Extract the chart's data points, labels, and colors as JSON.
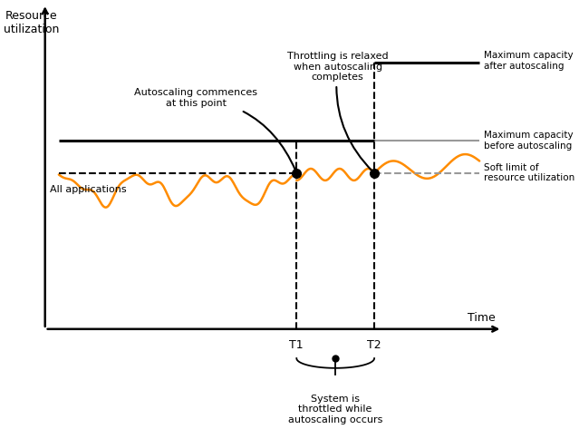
{
  "title": "",
  "xlabel": "Time",
  "ylabel": "Resource\nutilization",
  "xlim": [
    0,
    10
  ],
  "ylim": [
    0,
    10
  ],
  "background_color": "#ffffff",
  "orange_color": "#FF8C00",
  "black_color": "#000000",
  "gray_color": "#999999",
  "gray_dashed_color": "#aaaaaa",
  "t1": 5.5,
  "t2": 7.2,
  "max_cap_before": 5.8,
  "max_cap_after": 8.2,
  "soft_limit": 4.8,
  "annotations": {
    "throttling_relaxed": "Throttling is relaxed\nwhen autoscaling\ncompletes",
    "autoscaling_commences": "Autoscaling commences\nat this point",
    "all_applications": "All applications",
    "max_cap_after": "Maximum capacity\nafter autoscaling",
    "max_cap_before": "Maximum capacity\nbefore autoscaling",
    "soft_limit": "Soft limit of\nresource utilization",
    "system_throttled": "System is\nthrottled while\nautoscaling occurs"
  }
}
